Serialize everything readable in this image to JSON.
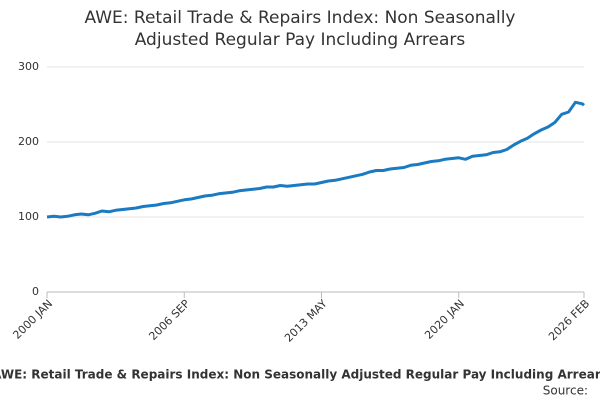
{
  "chart_data": {
    "type": "line",
    "title": "AWE: Retail Trade & Repairs Index: Non Seasonally Adjusted Regular Pay Including Arrears",
    "caption": "AWE: Retail Trade & Repairs Index: Non Seasonally Adjusted Regular Pay Including Arrears",
    "source": "Source:",
    "x": [
      "2000 JAN",
      "2000 MAY",
      "2000 SEP",
      "2001 JAN",
      "2001 MAY",
      "2001 SEP",
      "2002 JAN",
      "2002 MAY",
      "2002 SEP",
      "2003 JAN",
      "2003 MAY",
      "2003 SEP",
      "2004 JAN",
      "2004 MAY",
      "2004 SEP",
      "2005 JAN",
      "2005 MAY",
      "2005 SEP",
      "2006 JAN",
      "2006 MAY",
      "2006 SEP",
      "2007 JAN",
      "2007 MAY",
      "2007 SEP",
      "2008 JAN",
      "2008 MAY",
      "2008 SEP",
      "2009 JAN",
      "2009 MAY",
      "2009 SEP",
      "2010 JAN",
      "2010 MAY",
      "2010 SEP",
      "2011 JAN",
      "2011 MAY",
      "2011 SEP",
      "2012 JAN",
      "2012 MAY",
      "2012 SEP",
      "2013 JAN",
      "2013 MAY",
      "2013 SEP",
      "2014 JAN",
      "2014 MAY",
      "2014 SEP",
      "2015 JAN",
      "2015 MAY",
      "2015 SEP",
      "2016 JAN",
      "2016 MAY",
      "2016 SEP",
      "2017 JAN",
      "2017 MAY",
      "2017 SEP",
      "2018 JAN",
      "2018 MAY",
      "2018 SEP",
      "2019 JAN",
      "2019 MAY",
      "2019 SEP",
      "2020 JAN",
      "2020 MAY",
      "2020 SEP",
      "2021 JAN",
      "2021 MAY",
      "2021 SEP",
      "2022 JAN",
      "2022 MAY",
      "2022 SEP",
      "2023 JAN",
      "2023 MAY",
      "2023 SEP",
      "2024 JAN",
      "2024 MAY",
      "2024 SEP",
      "2025 JAN",
      "2025 MAY",
      "2025 SEP",
      "2026 JAN",
      "2026 FEB"
    ],
    "series": [
      {
        "color": "#1a7ac2",
        "values": [
          100,
          101,
          100,
          101,
          103,
          104,
          103,
          105,
          108,
          107,
          109,
          110,
          111,
          112,
          114,
          115,
          116,
          118,
          119,
          121,
          123,
          124,
          126,
          128,
          129,
          131,
          132,
          133,
          135,
          136,
          137,
          138,
          140,
          140,
          142,
          141,
          142,
          143,
          144,
          144,
          146,
          148,
          149,
          151,
          153,
          155,
          157,
          160,
          162,
          162,
          164,
          165,
          166,
          169,
          170,
          172,
          174,
          175,
          177,
          178,
          179,
          177,
          181,
          182,
          183,
          186,
          187,
          190,
          196,
          201,
          205,
          211,
          216,
          220,
          226,
          237,
          240,
          253,
          251,
          249
        ]
      }
    ],
    "xlim": [
      "2000 JAN",
      "2026 FEB"
    ],
    "xticks": [
      "2000 JAN",
      "2006 SEP",
      "2013 MAY",
      "2020 JAN",
      "2026 FEB"
    ],
    "ylim": [
      0,
      300
    ],
    "yticks": [
      0,
      100,
      200,
      300
    ],
    "grid": true
  }
}
